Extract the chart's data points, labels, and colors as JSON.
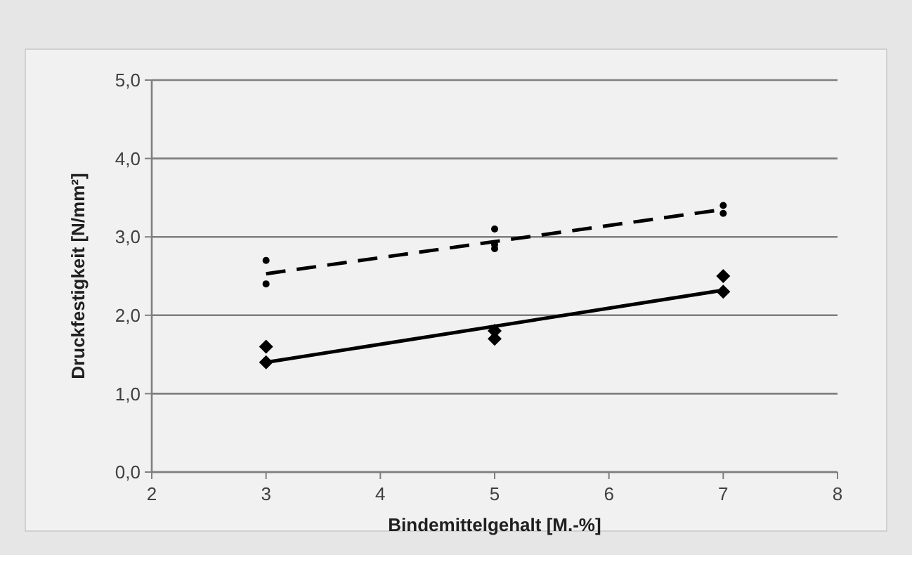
{
  "chart_data": {
    "type": "scatter",
    "xlabel": "Bindemittelgehalt [M.-%]",
    "ylabel": "Druckfestigkeit [N/mm²]",
    "xlim": [
      2,
      8
    ],
    "xticks": [
      2,
      3,
      4,
      5,
      6,
      7,
      8
    ],
    "ylim": [
      0,
      5
    ],
    "yticks": [
      {
        "value": 0,
        "label": "0,0"
      },
      {
        "value": 1,
        "label": "1,0"
      },
      {
        "value": 2,
        "label": "2,0"
      },
      {
        "value": 3,
        "label": "3,0"
      },
      {
        "value": 4,
        "label": "4,0"
      },
      {
        "value": 5,
        "label": "5,0"
      }
    ],
    "grid": "y",
    "series": [
      {
        "type": "scatter",
        "color": "#000000",
        "marker": "circle",
        "x": [
          3,
          3,
          5,
          5,
          5,
          7,
          7
        ],
        "values": [
          2.7,
          2.4,
          3.1,
          2.9,
          2.85,
          3.4,
          3.3
        ]
      },
      {
        "type": "scatter",
        "color": "#000000",
        "marker": "diamond",
        "x": [
          3,
          3,
          5,
          5,
          7,
          7
        ],
        "values": [
          1.6,
          1.4,
          1.8,
          1.7,
          2.5,
          2.3
        ]
      },
      {
        "type": "line",
        "color": "#000000",
        "marker": "none",
        "line_style": "dashed",
        "x": [
          3,
          7
        ],
        "values": [
          2.53,
          3.35
        ]
      },
      {
        "type": "line",
        "color": "#000000",
        "marker": "none",
        "line_style": "solid",
        "x": [
          3,
          7
        ],
        "values": [
          1.4,
          2.32
        ]
      }
    ]
  }
}
